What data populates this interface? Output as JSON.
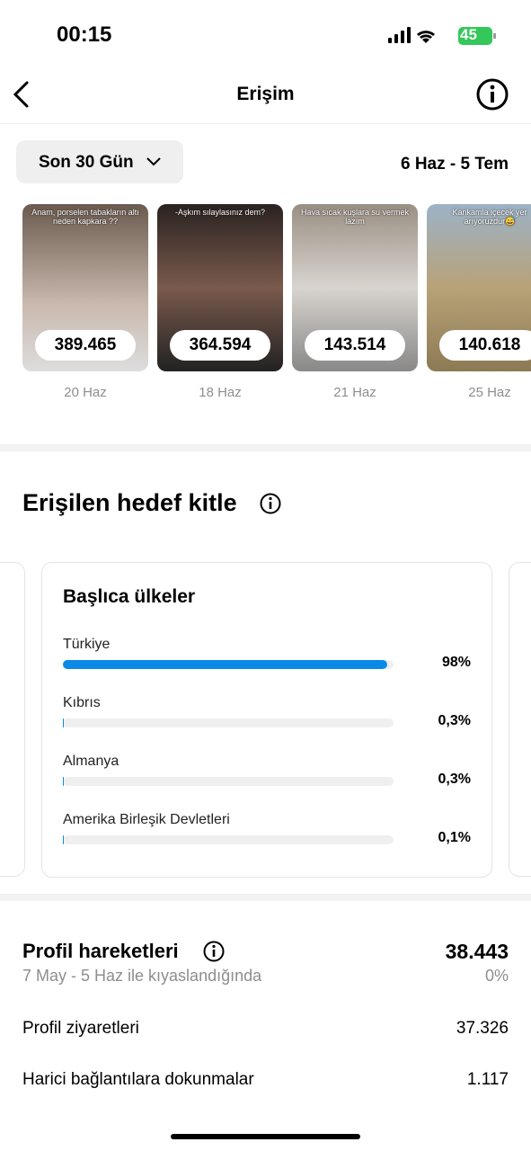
{
  "status_bar": {
    "time": "00:15",
    "battery": "45"
  },
  "header": {
    "title": "Erişim"
  },
  "filter": {
    "period": "Son 30 Gün",
    "date_range": "6 Haz - 5 Tem"
  },
  "posts": [
    {
      "caption": "Anam, porselen tabakların altı neden kapkara ??",
      "reach": "389.465",
      "date": "20 Haz"
    },
    {
      "caption": "-Aşkım sılaylasınız dem?",
      "reach": "364.594",
      "date": "18 Haz"
    },
    {
      "caption": "Hava sıcak kuşlara su vermek lazım",
      "reach": "143.514",
      "date": "21 Haz"
    },
    {
      "caption": "Kankamla içecek yer arıyoruzdur😅",
      "reach": "140.618",
      "date": "25 Haz"
    }
  ],
  "audience": {
    "title": "Erişilen hedef kitle",
    "card_title": "Başlıca ülkeler",
    "countries": [
      {
        "name": "Türkiye",
        "value": 98,
        "label": "98%"
      },
      {
        "name": "Kıbrıs",
        "value": 0.3,
        "label": "0,3%"
      },
      {
        "name": "Almanya",
        "value": 0.3,
        "label": "0,3%"
      },
      {
        "name": "Amerika Birleşik Devletleri",
        "value": 0.1,
        "label": "0,1%"
      }
    ]
  },
  "profile": {
    "title": "Profil hareketleri",
    "total": "38.443",
    "comparison": "7 May - 5 Haz ile kıyaslandığında",
    "change": "0%",
    "rows": [
      {
        "label": "Profil ziyaretleri",
        "value": "37.326"
      },
      {
        "label": "Harici bağlantılara dokunmalar",
        "value": "1.117"
      }
    ]
  }
}
